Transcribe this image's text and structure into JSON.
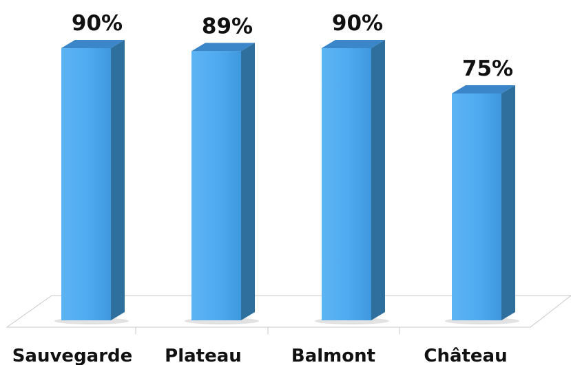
{
  "chart_data": {
    "type": "bar",
    "categories": [
      "Sauvegarde",
      "Plateau",
      "Balmont",
      "Château"
    ],
    "values": [
      90,
      89,
      90,
      75
    ],
    "data_labels": [
      "90%",
      "89%",
      "90%",
      "75%"
    ],
    "ylim": [
      0,
      100
    ],
    "grid": false,
    "legend": "none",
    "colors": {
      "bar_front": "#4faaf0",
      "bar_side": "#2f6f9e",
      "bar_top": "#3a86c8"
    }
  }
}
